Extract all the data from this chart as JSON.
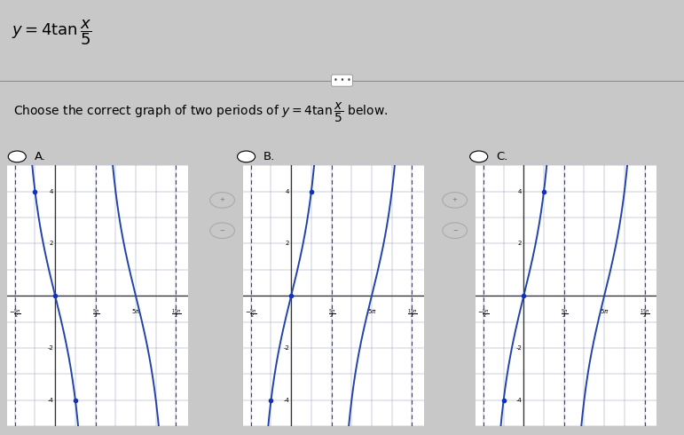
{
  "bg_color": "#c8c8c8",
  "panel_bg": "#ffffff",
  "graph_line_color": "#2244aa",
  "dot_color": "#1133bb",
  "axis_color": "#333333",
  "grid_color": "#9999bb",
  "dashed_color": "#444466",
  "pi": 3.14159265358979,
  "graph_A_flip": true,
  "graph_B_flip": false,
  "graph_C_flip": false,
  "title_text": "$y = 4\\tan\\dfrac{x}{5}$",
  "question_text": "Choose the correct graph of two periods of $y = 4\\tan\\dfrac{x}{5}$ below.",
  "label_A": "A.",
  "label_B": "B.",
  "label_C": "C."
}
